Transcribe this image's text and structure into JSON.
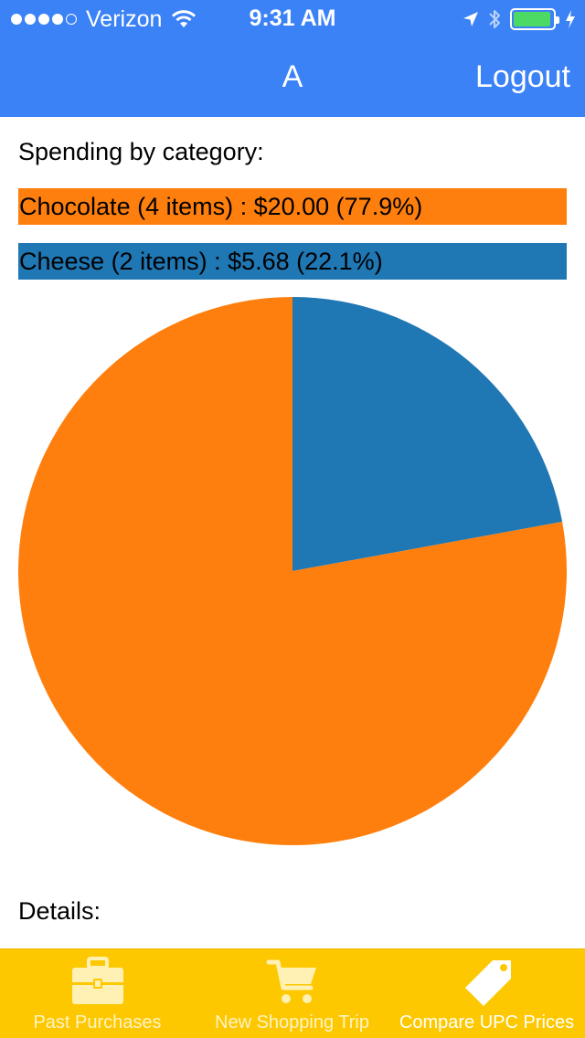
{
  "status_bar": {
    "signal_bars": 5,
    "signal_filled": 4,
    "carrier": "Verizon",
    "time": "9:31 AM",
    "battery_percent": 95,
    "icons": [
      "wifi-icon",
      "location-arrow-icon",
      "bluetooth-icon",
      "battery-icon",
      "charging-icon"
    ]
  },
  "nav": {
    "title": "A",
    "logout_label": "Logout"
  },
  "content": {
    "spending_heading": "Spending by category:",
    "legend": [
      {
        "label": "Chocolate (4 items) : $20.00 (77.9%)",
        "color": "#ff7f0e"
      },
      {
        "label": "Cheese (2 items) : $5.68 (22.1%)",
        "color": "#1f77b4"
      }
    ],
    "details_heading": "Details:"
  },
  "chart_data": {
    "type": "pie",
    "title": "",
    "slices": [
      {
        "category": "Cheese",
        "items": 2,
        "value": 5.68,
        "percent": 22.1,
        "color": "#1f77b4"
      },
      {
        "category": "Chocolate",
        "items": 4,
        "value": 20.0,
        "percent": 77.9,
        "color": "#ff7f0e"
      }
    ],
    "start_angle": "12 o'clock",
    "direction": "clockwise"
  },
  "tab_bar": {
    "background": "#fdc800",
    "tabs": [
      {
        "label": "Past Purchases",
        "icon": "briefcase-icon",
        "active": false
      },
      {
        "label": "New Shopping Trip",
        "icon": "shopping-cart-icon",
        "active": false
      },
      {
        "label": "Compare UPC Prices",
        "icon": "price-tag-icon",
        "active": true
      }
    ]
  },
  "colors": {
    "nav_background": "#3b82f6",
    "battery_fill": "#4cd964"
  }
}
